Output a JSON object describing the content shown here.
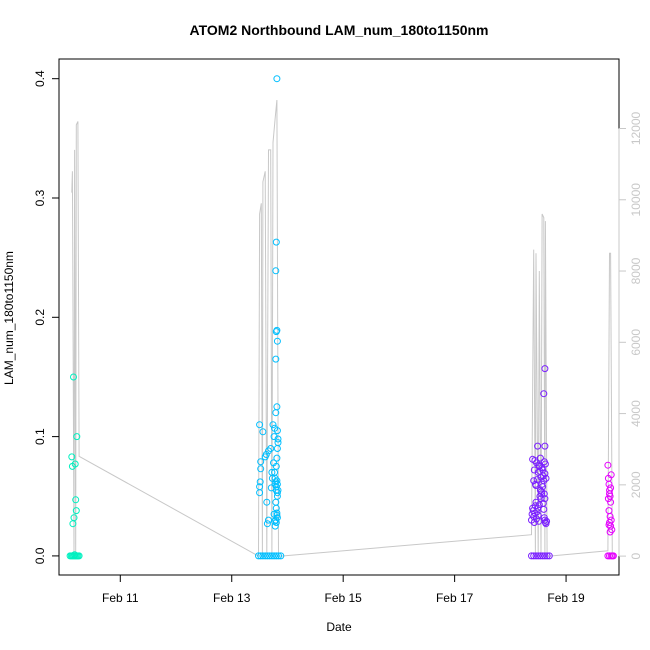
{
  "chart_data": {
    "type": "scatter",
    "title": "ATOM2 Northbound LAM_num_180to1150nm",
    "xlabel": "Date",
    "ylabel": "LAM_num_180to1150nm",
    "x_unit": "days in February",
    "xlim": [
      9.9,
      19.95
    ],
    "ylim": [
      -0.016,
      0.4165
    ],
    "y2lim": [
      -530,
      13950
    ],
    "x_ticks": [
      {
        "value": 11,
        "label": "Feb 11"
      },
      {
        "value": 13,
        "label": "Feb 13"
      },
      {
        "value": 15,
        "label": "Feb 15"
      },
      {
        "value": 17,
        "label": "Feb 17"
      },
      {
        "value": 19,
        "label": "Feb 19"
      }
    ],
    "y_ticks": [
      {
        "value": 0.0,
        "label": "0.0"
      },
      {
        "value": 0.1,
        "label": "0.1"
      },
      {
        "value": 0.2,
        "label": "0.2"
      },
      {
        "value": 0.3,
        "label": "0.3"
      },
      {
        "value": 0.4,
        "label": "0.4"
      }
    ],
    "y2_ticks": [
      {
        "value": 0,
        "label": "0"
      },
      {
        "value": 2000,
        "label": "2000"
      },
      {
        "value": 4000,
        "label": "4000"
      },
      {
        "value": 6000,
        "label": "6000"
      },
      {
        "value": 8000,
        "label": "8000"
      },
      {
        "value": 10000,
        "label": "10000"
      },
      {
        "value": 12000,
        "label": "12000"
      }
    ],
    "grid": false,
    "legend": "none",
    "colors": {
      "line": "#c8c8c8",
      "right_axis": "#c8c8c8",
      "group_feb10": "#00f0c0",
      "group_feb13": "#00bfff",
      "group_feb18": "#7b20ff",
      "group_feb19": "#e600ff"
    },
    "secondary_line": [
      [
        10.13,
        10200
      ],
      [
        10.14,
        10800
      ],
      [
        10.17,
        0
      ],
      [
        10.18,
        11400
      ],
      [
        10.2,
        0
      ],
      [
        10.21,
        12100
      ],
      [
        10.24,
        12200
      ],
      [
        10.26,
        2800
      ],
      [
        13.48,
        0
      ],
      [
        13.5,
        9600
      ],
      [
        13.53,
        9900
      ],
      [
        13.55,
        0
      ],
      [
        13.56,
        10500
      ],
      [
        13.6,
        10800
      ],
      [
        13.63,
        0
      ],
      [
        13.66,
        11400
      ],
      [
        13.7,
        11400
      ],
      [
        13.72,
        0
      ],
      [
        13.74,
        11600
      ],
      [
        13.78,
        12300
      ],
      [
        13.81,
        12800
      ],
      [
        13.84,
        0
      ],
      [
        13.88,
        0
      ],
      [
        18.38,
        600
      ],
      [
        18.42,
        8600
      ],
      [
        18.45,
        0
      ],
      [
        18.46,
        8500
      ],
      [
        18.5,
        0
      ],
      [
        18.52,
        8000
      ],
      [
        18.55,
        0
      ],
      [
        18.57,
        9600
      ],
      [
        18.6,
        9500
      ],
      [
        18.62,
        0
      ],
      [
        18.63,
        9400
      ],
      [
        18.66,
        0
      ],
      [
        18.7,
        0
      ],
      [
        19.75,
        150
      ],
      [
        19.78,
        8500
      ],
      [
        19.8,
        8500
      ],
      [
        19.83,
        0
      ],
      [
        19.85,
        0
      ]
    ],
    "series": [
      {
        "group": "group_feb10",
        "x": [
          10.13,
          10.14,
          10.16,
          10.17,
          10.15,
          10.2,
          10.21,
          10.22,
          10.19,
          10.18,
          10.1,
          10.12,
          10.14,
          10.16,
          10.18,
          10.2,
          10.22,
          10.24,
          10.26
        ],
        "y": [
          0.083,
          0.075,
          0.15,
          0.032,
          0.027,
          0.047,
          0.038,
          0.1,
          0.077,
          0.001,
          0,
          0,
          0,
          0,
          0,
          0,
          0,
          0,
          0
        ]
      },
      {
        "group": "group_feb13",
        "x": [
          13.5,
          13.52,
          13.51,
          13.5,
          13.5,
          13.52,
          13.56,
          13.6,
          13.62,
          13.63,
          13.64,
          13.66,
          13.66,
          13.7,
          13.72,
          13.71,
          13.73,
          13.75,
          13.76,
          13.77,
          13.78,
          13.79,
          13.8,
          13.81,
          13.82,
          13.81,
          13.8,
          13.79,
          13.82,
          13.82,
          13.8,
          13.78,
          13.79,
          13.8,
          13.81,
          13.82,
          13.83,
          13.77,
          13.78,
          13.8,
          13.81,
          13.82,
          13.83,
          13.76,
          13.74,
          13.77,
          13.79,
          13.81,
          13.82,
          13.83,
          13.8,
          13.81,
          13.79,
          13.82,
          13.48,
          13.52,
          13.56,
          13.6,
          13.64,
          13.68,
          13.72,
          13.76,
          13.8,
          13.84,
          13.88
        ],
        "y": [
          0.11,
          0.073,
          0.062,
          0.058,
          0.053,
          0.079,
          0.104,
          0.083,
          0.085,
          0.045,
          0.027,
          0.03,
          0.088,
          0.09,
          0.07,
          0.057,
          0.065,
          0.078,
          0.035,
          0.029,
          0.025,
          0.03,
          0.028,
          0.034,
          0.032,
          0.036,
          0.04,
          0.045,
          0.05,
          0.053,
          0.055,
          0.06,
          0.062,
          0.058,
          0.063,
          0.06,
          0.055,
          0.07,
          0.065,
          0.075,
          0.082,
          0.09,
          0.095,
          0.1,
          0.11,
          0.107,
          0.12,
          0.125,
          0.105,
          0.098,
          0.188,
          0.189,
          0.165,
          0.18,
          0,
          0,
          0,
          0,
          0,
          0,
          0,
          0,
          0,
          0,
          0
        ]
      },
      {
        "group": "group_feb13",
        "x": [
          13.79,
          13.8,
          13.81
        ],
        "y": [
          0.239,
          0.263,
          0.4
        ]
      },
      {
        "group": "group_feb18",
        "x": [
          18.38,
          18.39,
          18.4,
          18.41,
          18.42,
          18.43,
          18.44,
          18.45,
          18.46,
          18.47,
          18.48,
          18.49,
          18.5,
          18.51,
          18.52,
          18.53,
          18.54,
          18.55,
          18.56,
          18.57,
          18.58,
          18.59,
          18.6,
          18.61,
          18.62,
          18.63,
          18.64,
          18.65,
          18.45,
          18.48,
          18.5,
          18.52,
          18.55,
          18.58,
          18.6,
          18.62,
          18.64,
          18.44,
          18.47,
          18.51,
          18.54,
          18.57,
          18.61,
          18.63,
          18.42,
          18.46,
          18.53,
          18.56,
          18.59,
          18.62,
          18.4,
          18.43,
          18.49,
          18.6,
          18.62,
          18.61,
          18.62,
          18.38,
          18.42,
          18.46,
          18.5,
          18.54,
          18.58,
          18.62,
          18.66,
          18.7
        ],
        "y": [
          0.03,
          0.035,
          0.04,
          0.038,
          0.033,
          0.028,
          0.036,
          0.042,
          0.045,
          0.031,
          0.037,
          0.04,
          0.034,
          0.029,
          0.043,
          0.05,
          0.055,
          0.048,
          0.052,
          0.06,
          0.058,
          0.044,
          0.039,
          0.032,
          0.03,
          0.028,
          0.027,
          0.029,
          0.06,
          0.064,
          0.07,
          0.075,
          0.066,
          0.072,
          0.063,
          0.069,
          0.065,
          0.08,
          0.078,
          0.076,
          0.082,
          0.074,
          0.079,
          0.077,
          0.063,
          0.059,
          0.071,
          0.054,
          0.067,
          0.092,
          0.081,
          0.072,
          0.092,
          0.136,
          0.157,
          0.052,
          0.048,
          0,
          0,
          0,
          0,
          0,
          0,
          0,
          0,
          0
        ]
      },
      {
        "group": "group_feb19",
        "x": [
          19.75,
          19.76,
          19.77,
          19.78,
          19.79,
          19.8,
          19.81,
          19.76,
          19.78,
          19.8,
          19.77,
          19.79,
          19.81,
          19.78,
          19.8,
          19.82,
          19.79,
          19.77,
          19.75,
          19.78,
          19.81,
          19.83,
          19.85
        ],
        "y": [
          0.076,
          0.065,
          0.06,
          0.055,
          0.05,
          0.045,
          0.068,
          0.048,
          0.052,
          0.057,
          0.038,
          0.033,
          0.03,
          0.028,
          0.025,
          0.022,
          0.02,
          0.026,
          0,
          0,
          0,
          0,
          0
        ]
      }
    ]
  }
}
